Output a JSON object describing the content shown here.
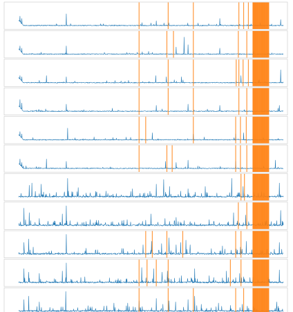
{
  "figure": {
    "background": "#ffffff"
  },
  "chart_data": {
    "type": "line",
    "panel_count": 11,
    "title": "",
    "xlabel": "",
    "ylabel": "",
    "xlim": [
      0,
      1000
    ],
    "ylim": [
      0,
      1
    ],
    "grid": false,
    "legend": "none",
    "colors": {
      "series": "#1f77b4",
      "anomaly_marker": "#ff7f0e"
    },
    "marker_style": "vertical orange bands at anomaly positions; dense cluster near the right end",
    "panels": [
      {
        "peaks": [
          [
            5,
            0.45
          ],
          [
            12,
            0.35
          ],
          [
            180,
            0.55
          ],
          [
            520,
            0.25
          ],
          [
            760,
            0.35
          ],
          [
            990,
            0.3
          ]
        ],
        "lines": [
          455,
          565,
          660,
          832,
          850,
          868
        ]
      },
      {
        "peaks": [
          [
            5,
            0.4
          ],
          [
            12,
            0.3
          ],
          [
            180,
            0.4
          ],
          [
            595,
            0.35
          ],
          [
            625,
            0.78
          ],
          [
            640,
            0.45
          ],
          [
            760,
            0.3
          ]
        ],
        "lines": [
          455,
          560,
          585,
          660,
          830,
          862
        ]
      },
      {
        "peaks": [
          [
            5,
            0.35
          ],
          [
            12,
            0.3
          ],
          [
            105,
            0.35
          ],
          [
            180,
            0.3
          ],
          [
            518,
            0.35
          ],
          [
            558,
            0.3
          ],
          [
            615,
            0.3
          ],
          [
            840,
            0.35
          ],
          [
            990,
            0.6
          ]
        ],
        "lines": [
          455,
          565,
          660,
          822,
          832,
          848,
          868
        ]
      },
      {
        "peaks": [
          [
            5,
            0.55
          ],
          [
            12,
            0.4
          ],
          [
            180,
            0.35
          ],
          [
            520,
            0.3
          ],
          [
            640,
            0.35
          ],
          [
            760,
            0.3
          ],
          [
            985,
            0.3
          ]
        ],
        "lines": [
          455,
          565,
          660,
          832,
          862
        ]
      },
      {
        "peaks": [
          [
            5,
            0.4
          ],
          [
            12,
            0.3
          ],
          [
            185,
            0.55
          ],
          [
            505,
            0.35
          ],
          [
            660,
            0.3
          ],
          [
            820,
            0.3
          ],
          [
            850,
            0.35
          ]
        ],
        "lines": [
          455,
          480,
          660,
          820,
          838,
          860
        ]
      },
      {
        "peaks": [
          [
            5,
            0.45
          ],
          [
            12,
            0.3
          ],
          [
            105,
            0.45
          ],
          [
            180,
            0.35
          ],
          [
            555,
            0.35
          ],
          [
            595,
            0.3
          ],
          [
            640,
            0.4
          ],
          [
            820,
            0.35
          ],
          [
            970,
            0.4
          ]
        ],
        "lines": [
          455,
          560,
          580,
          820,
          838,
          862
        ]
      },
      {
        "peaks": [
          [
            40,
            0.55
          ],
          [
            50,
            0.65
          ],
          [
            85,
            0.6
          ],
          [
            185,
            0.85
          ],
          [
            225,
            0.45
          ],
          [
            330,
            0.3
          ],
          [
            430,
            0.4
          ],
          [
            520,
            0.6
          ],
          [
            548,
            0.8
          ],
          [
            570,
            0.5
          ],
          [
            612,
            0.3
          ],
          [
            640,
            0.4
          ],
          [
            705,
            0.5
          ],
          [
            805,
            0.85
          ],
          [
            848,
            0.5
          ],
          [
            985,
            0.65
          ]
        ],
        "lines": [
          840,
          853
        ]
      },
      {
        "peaks": [
          [
            20,
            0.8
          ],
          [
            40,
            0.6
          ],
          [
            78,
            0.35
          ],
          [
            165,
            0.55
          ],
          [
            180,
            0.9
          ],
          [
            270,
            0.3
          ],
          [
            410,
            0.3
          ],
          [
            500,
            0.55
          ],
          [
            553,
            0.35
          ],
          [
            595,
            0.4
          ],
          [
            720,
            0.3
          ],
          [
            812,
            0.6
          ],
          [
            858,
            0.5
          ],
          [
            990,
            0.7
          ]
        ],
        "lines": [
          830,
          862
        ]
      },
      {
        "peaks": [
          [
            20,
            0.55
          ],
          [
            38,
            0.7
          ],
          [
            55,
            0.35
          ],
          [
            180,
            0.9
          ],
          [
            255,
            0.3
          ],
          [
            470,
            0.45
          ],
          [
            502,
            0.6
          ],
          [
            540,
            0.5
          ],
          [
            568,
            0.75
          ],
          [
            595,
            0.45
          ],
          [
            612,
            0.55
          ],
          [
            632,
            0.65
          ],
          [
            648,
            0.45
          ],
          [
            770,
            0.4
          ],
          [
            838,
            0.35
          ],
          [
            860,
            0.6
          ],
          [
            985,
            0.55
          ]
        ],
        "lines": [
          480,
          505,
          560,
          620,
          820,
          840
        ]
      },
      {
        "peaks": [
          [
            20,
            0.65
          ],
          [
            38,
            0.5
          ],
          [
            78,
            0.45
          ],
          [
            165,
            0.55
          ],
          [
            180,
            0.9
          ],
          [
            250,
            0.3
          ],
          [
            465,
            0.7
          ],
          [
            510,
            0.65
          ],
          [
            542,
            0.5
          ],
          [
            562,
            0.55
          ],
          [
            615,
            0.35
          ],
          [
            665,
            0.65
          ],
          [
            720,
            0.35
          ],
          [
            785,
            0.55
          ],
          [
            835,
            0.45
          ],
          [
            850,
            0.3
          ],
          [
            985,
            0.6
          ]
        ],
        "lines": [
          455,
          485,
          520,
          565,
          800,
          840
        ]
      },
      {
        "peaks": [
          [
            20,
            0.55
          ],
          [
            38,
            0.7
          ],
          [
            78,
            0.45
          ],
          [
            178,
            0.9
          ],
          [
            360,
            0.4
          ],
          [
            412,
            0.4
          ],
          [
            455,
            0.5
          ],
          [
            520,
            0.6
          ],
          [
            545,
            0.35
          ],
          [
            568,
            0.5
          ],
          [
            593,
            0.45
          ],
          [
            640,
            0.55
          ],
          [
            665,
            0.7
          ],
          [
            690,
            0.35
          ],
          [
            755,
            0.4
          ],
          [
            800,
            0.3
          ],
          [
            845,
            0.35
          ],
          [
            975,
            0.45
          ]
        ],
        "lines": [
          455,
          565,
          660,
          820,
          850
        ]
      }
    ],
    "dense_cluster": {
      "start": 885,
      "end": 945,
      "step": 2
    }
  }
}
